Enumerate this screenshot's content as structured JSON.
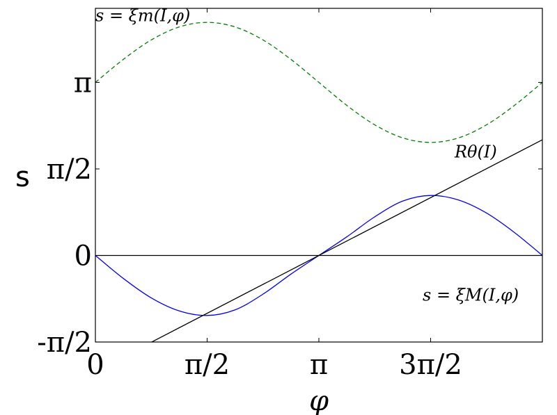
{
  "chart_data": {
    "type": "line",
    "title": "",
    "xlabel": "φ",
    "ylabel": "s",
    "xlim": [
      0,
      6.2832
    ],
    "ylim": [
      -1.5708,
      4.4856
    ],
    "x_ticks": [
      {
        "value": 0,
        "label": "0"
      },
      {
        "value": 1.5708,
        "label": "π/2"
      },
      {
        "value": 3.1416,
        "label": "π"
      },
      {
        "value": 4.7124,
        "label": "3π/2"
      }
    ],
    "y_ticks": [
      {
        "value": -1.5708,
        "label": "-π/2"
      },
      {
        "value": 0,
        "label": "0"
      },
      {
        "value": 1.5708,
        "label": "π/2"
      },
      {
        "value": 3.1416,
        "label": "π"
      }
    ],
    "grid": false,
    "series": [
      {
        "id": "xi_m",
        "style": "dashed",
        "color": "#008000",
        "x": [
          0,
          0.3927,
          0.7854,
          1.1781,
          1.5708,
          1.9635,
          2.3562,
          2.7489,
          3.1416,
          3.5343,
          3.927,
          4.3197,
          4.7124,
          5.1051,
          5.4978,
          5.8905,
          6.2832
        ],
        "y": [
          3.1416,
          3.559,
          3.912,
          4.148,
          4.231,
          4.148,
          3.912,
          3.559,
          3.1416,
          2.724,
          2.371,
          2.135,
          2.052,
          2.135,
          2.371,
          2.724,
          3.1416
        ]
      },
      {
        "id": "xi_M",
        "style": "solid",
        "color": "#0000ff",
        "x": [
          0,
          0.3927,
          0.7854,
          1.1781,
          1.5708,
          1.9635,
          2.3562,
          2.7489,
          3.1416,
          3.5343,
          3.927,
          4.3197,
          4.7124,
          5.1051,
          5.4978,
          5.8905,
          6.2832
        ],
        "y": [
          0,
          -0.417,
          -0.77,
          -1.006,
          -1.089,
          -0.987,
          -0.702,
          -0.338,
          0,
          0.338,
          0.702,
          0.987,
          1.089,
          1.006,
          0.77,
          0.417,
          0
        ]
      },
      {
        "id": "R_theta",
        "style": "solid",
        "color": "#000000",
        "x": [
          0,
          6.2832
        ],
        "y": [
          -2.1,
          2.1
        ]
      },
      {
        "id": "zero_line",
        "style": "solid",
        "color": "#000000",
        "x": [
          0,
          6.2832
        ],
        "y": [
          0,
          0
        ]
      }
    ],
    "annotations": [
      {
        "text": "s = ξm(I,φ)",
        "x": 0.0,
        "y": 4.25
      },
      {
        "text": "Rθ(I)",
        "x": 5.05,
        "y": 1.78
      },
      {
        "text": "s = ξM(I,φ)",
        "x": 4.6,
        "y": -0.82
      }
    ]
  }
}
